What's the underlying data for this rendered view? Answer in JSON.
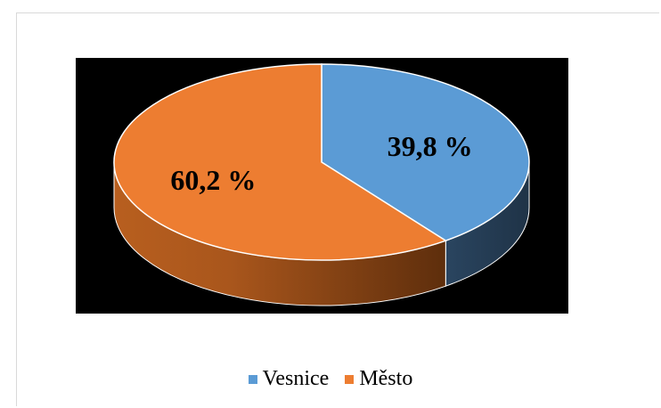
{
  "chart_data": {
    "type": "pie",
    "title": "",
    "categories": [
      "Vesnice",
      "Město"
    ],
    "values": [
      39.8,
      60.2
    ],
    "data_labels": [
      "39,8 %",
      "60,2 %"
    ],
    "colors": [
      "#5b9bd5",
      "#ed7d31"
    ],
    "plot_background": "#000000",
    "legend": {
      "position": "bottom",
      "entries": [
        "Vesnice",
        "Město"
      ]
    },
    "style": "3d"
  }
}
